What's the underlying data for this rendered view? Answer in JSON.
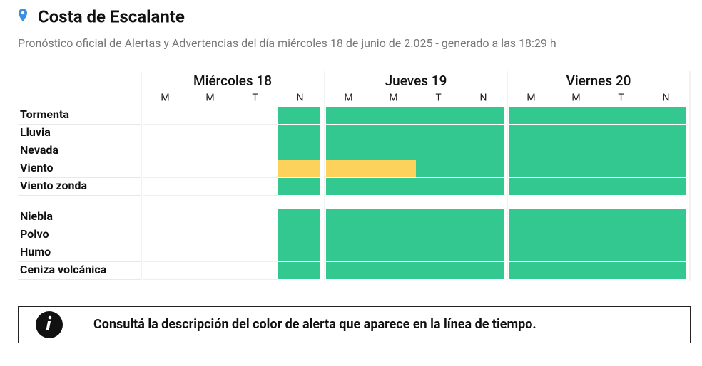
{
  "header": {
    "title": "Costa de Escalante",
    "subtitle": "Pronóstico oficial de Alertas y Advertencias del día miércoles 18 de junio de 2.025 - generado a las 18:29 h"
  },
  "palette": {
    "verde": "#33c88f",
    "amarillo": "#fcd25c"
  },
  "days": [
    {
      "label": "Miércoles 18",
      "periods": [
        "M",
        "M",
        "T",
        "N"
      ]
    },
    {
      "label": "Jueves 19",
      "periods": [
        "M",
        "M",
        "T",
        "N"
      ]
    },
    {
      "label": "Viernes 20",
      "periods": [
        "M",
        "M",
        "T",
        "N"
      ]
    }
  ],
  "groups": [
    {
      "rows": [
        {
          "label": "Tormenta",
          "cells": [
            null,
            null,
            null,
            "verde",
            "verde",
            "verde",
            "verde",
            "verde",
            "verde",
            "verde",
            "verde",
            "verde"
          ]
        },
        {
          "label": "Lluvia",
          "cells": [
            null,
            null,
            null,
            "verde",
            "verde",
            "verde",
            "verde",
            "verde",
            "verde",
            "verde",
            "verde",
            "verde"
          ]
        },
        {
          "label": "Nevada",
          "cells": [
            null,
            null,
            null,
            "verde",
            "verde",
            "verde",
            "verde",
            "verde",
            "verde",
            "verde",
            "verde",
            "verde"
          ]
        },
        {
          "label": "Viento",
          "cells": [
            null,
            null,
            null,
            "amarillo",
            "amarillo",
            "amarillo",
            "verde",
            "verde",
            "verde",
            "verde",
            "verde",
            "verde"
          ]
        },
        {
          "label": "Viento zonda",
          "cells": [
            null,
            null,
            null,
            "verde",
            "verde",
            "verde",
            "verde",
            "verde",
            "verde",
            "verde",
            "verde",
            "verde"
          ]
        }
      ]
    },
    {
      "rows": [
        {
          "label": "Niebla",
          "cells": [
            null,
            null,
            null,
            "verde",
            "verde",
            "verde",
            "verde",
            "verde",
            "verde",
            "verde",
            "verde",
            "verde"
          ]
        },
        {
          "label": "Polvo",
          "cells": [
            null,
            null,
            null,
            "verde",
            "verde",
            "verde",
            "verde",
            "verde",
            "verde",
            "verde",
            "verde",
            "verde"
          ]
        },
        {
          "label": "Humo",
          "cells": [
            null,
            null,
            null,
            "verde",
            "verde",
            "verde",
            "verde",
            "verde",
            "verde",
            "verde",
            "verde",
            "verde"
          ]
        },
        {
          "label": "Ceniza volcánica",
          "cells": [
            null,
            null,
            null,
            "verde",
            "verde",
            "verde",
            "verde",
            "verde",
            "verde",
            "verde",
            "verde",
            "verde"
          ]
        }
      ]
    }
  ],
  "note": "Consultá la descripción del color de alerta que aparece en la línea de tiempo."
}
